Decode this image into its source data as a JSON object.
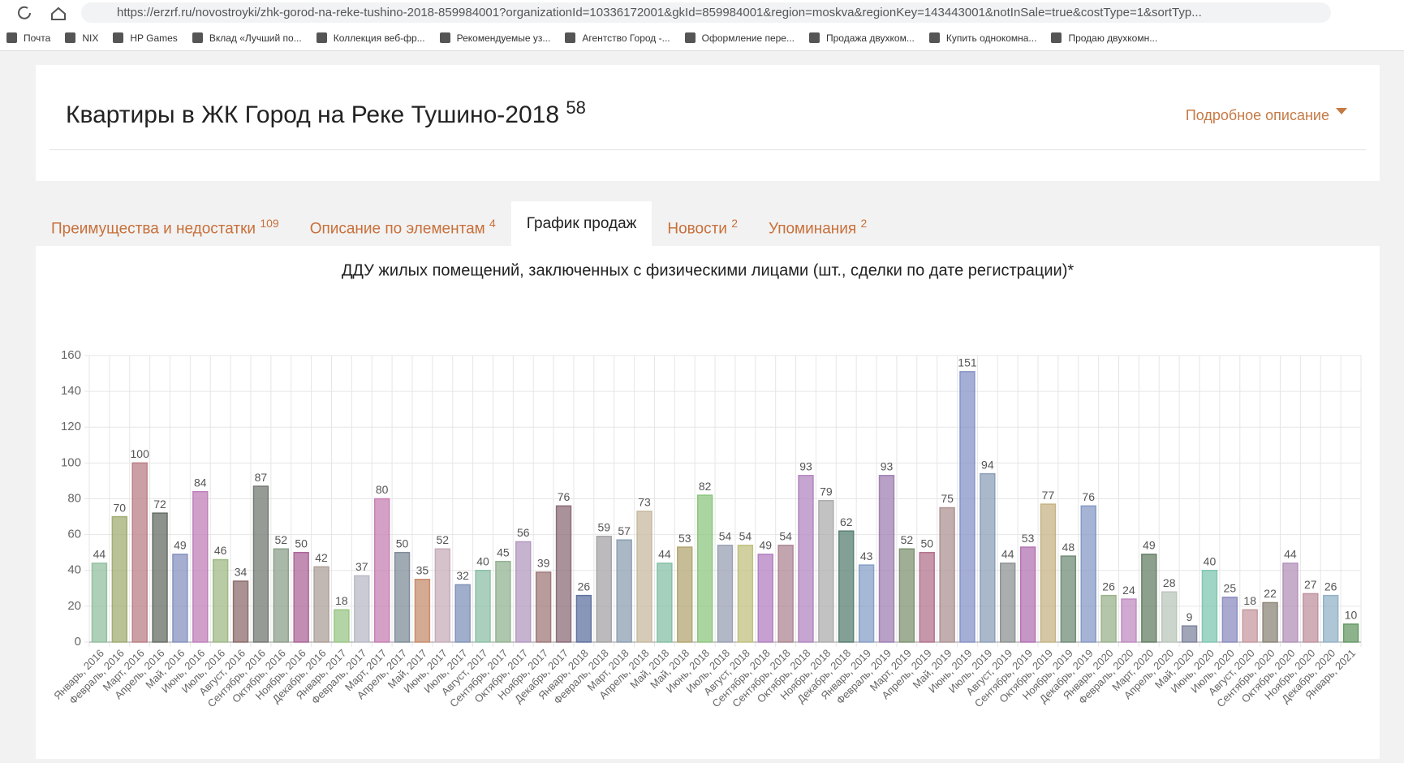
{
  "browser": {
    "url": "https://erzrf.ru/novostroyki/zhk-gorod-na-reke-tushino-2018-859984001?organizationId=10336172001&gkId=859984001&region=moskva&regionKey=143443001&notInSale=true&costType=1&sortTyp...",
    "bookmarks": [
      "Почта",
      "NIX",
      "HP Games",
      "Вклад «Лучший по...",
      "Коллекция веб-фр...",
      "Рекомендуемые уз...",
      "Агентство Город -...",
      "Оформление пере...",
      "Продажа двухком...",
      "Купить однокомна...",
      "Продаю двухкомн..."
    ]
  },
  "header": {
    "title": "Квартиры в ЖК Город на Реке Тушино-2018",
    "count": "58",
    "details": "Подробное описание"
  },
  "tabs": [
    {
      "label": "Преимущества и недостатки",
      "count": "109"
    },
    {
      "label": "Описание по элементам",
      "count": "4"
    },
    {
      "label": "График продаж"
    },
    {
      "label": "Новости",
      "count": "2"
    },
    {
      "label": "Упоминания",
      "count": "2"
    }
  ],
  "chart_data": {
    "type": "bar",
    "title": "ДДУ жилых помещений, заключенных с физическими лицами (шт., сделки по дате регистрации)*",
    "categories": [
      "Январь, 2016",
      "Февраль, 2016",
      "Март, 2016",
      "Апрель, 2016",
      "Май, 2016",
      "Июнь, 2016",
      "Июль, 2016",
      "Август, 2016",
      "Сентябрь, 2016",
      "Октябрь, 2016",
      "Ноябрь, 2016",
      "Декабрь, 2016",
      "Январь, 2017",
      "Февраль, 2017",
      "Март, 2017",
      "Апрель, 2017",
      "Май, 2017",
      "Июнь, 2017",
      "Июль, 2017",
      "Август, 2017",
      "Сентябрь, 2017",
      "Октябрь, 2017",
      "Ноябрь, 2017",
      "Декабрь, 2017",
      "Январь, 2018",
      "Февраль, 2018",
      "Март, 2018",
      "Апрель, 2018",
      "Май, 2018",
      "Май, 2018",
      "Июнь, 2018",
      "Июль, 2018",
      "Август, 2018",
      "Сентябрь, 2018",
      "Сентябрь, 2018",
      "Октябрь, 2018",
      "Ноябрь, 2018",
      "Декабрь, 2018",
      "Январь, 2019",
      "Февраль, 2019",
      "Март, 2019",
      "Апрель, 2019",
      "Май, 2019",
      "Июнь, 2019",
      "Июль, 2019",
      "Август, 2019",
      "Сентябрь, 2019",
      "Октябрь, 2019",
      "Ноябрь, 2019",
      "Декабрь, 2019",
      "Январь, 2020",
      "Февраль, 2020",
      "Март, 2020",
      "Апрель, 2020",
      "Май, 2020",
      "Июнь, 2020",
      "Июль, 2020",
      "Август, 2020",
      "Сентябрь, 2020",
      "Октябрь, 2020",
      "Ноябрь, 2020",
      "Декабрь, 2020",
      "Январь, 2021"
    ],
    "values": [
      44,
      70,
      100,
      72,
      49,
      84,
      46,
      34,
      87,
      52,
      50,
      42,
      18,
      37,
      80,
      50,
      35,
      52,
      32,
      40,
      45,
      56,
      39,
      76,
      26,
      59,
      57,
      73,
      44,
      53,
      82,
      54,
      54,
      49,
      54,
      93,
      79,
      62,
      43,
      93,
      52,
      50,
      75,
      151,
      94,
      44,
      53,
      77,
      48,
      76,
      26,
      24,
      49,
      28,
      9,
      40,
      25,
      18,
      22,
      44,
      27,
      26,
      10
    ],
    "colors": [
      "#b8f0c8",
      "#c8d890",
      "#e8a0a8",
      "#808a80",
      "#a8b8f0",
      "#f0a0e8",
      "#c8e8a8",
      "#b08888",
      "#909890",
      "#b0c8b0",
      "#d880c0",
      "#d8c8c0",
      "#c0f8a8",
      "#e8e8f8",
      "#f8a0e0",
      "#a0b0c0",
      "#f8b088",
      "#f8d8e8",
      "#a0b8e8",
      "#b0f0d0",
      "#b8e0b8",
      "#e0c0f0",
      "#c89898",
      "#b08898",
      "#7890c8",
      "#d0ccd0",
      "#b0c8e0",
      "#f8e8c8",
      "#a8f0d0",
      "#e0d090",
      "#b0f8a0",
      "#c0c8e0",
      "#f0f0a0",
      "#e0a0f0",
      "#d8a8b8",
      "#e0a8f0",
      "#d8d8d8",
      "#70a090",
      "#a8c8f8",
      "#c8a0e0",
      "#a0b890",
      "#e090b0",
      "#d8b8b8",
      "#a8b8f8",
      "#b0c8e8",
      "#b0b8b8",
      "#e090e0",
      "#f8e0a8",
      "#90b098",
      "#a8c0f8",
      "#c0e0b0",
      "#f0b0f0",
      "#80a080",
      "#e8f8e8",
      "#a0a8c8",
      "#a0f8e0",
      "#b0b0f0",
      "#f8c0c8",
      "#b0a898",
      "#e0b8e8",
      "#f0b8c8",
      "#b8e0f8",
      "#80c080"
    ],
    "ylim": [
      0,
      160
    ],
    "yticks": [
      0,
      20,
      40,
      60,
      80,
      100,
      120,
      140,
      160
    ],
    "grid": true
  }
}
